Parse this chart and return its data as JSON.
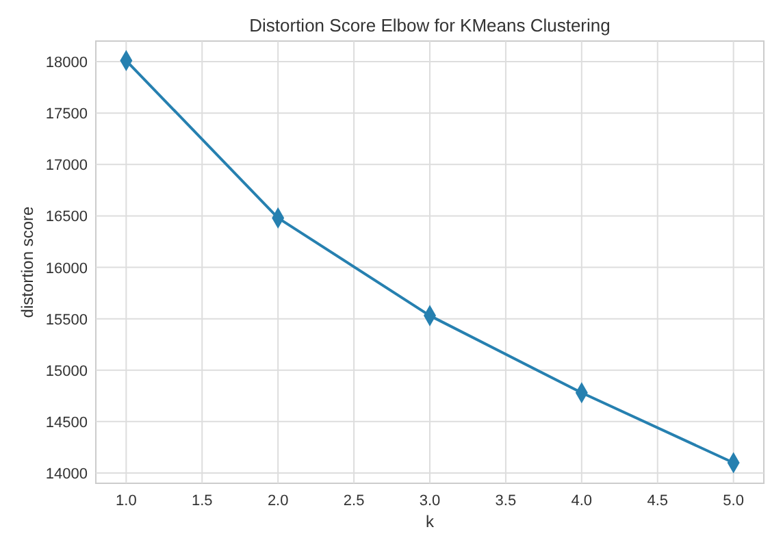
{
  "chart_data": {
    "type": "line",
    "title": "Distortion Score Elbow for KMeans Clustering",
    "xlabel": "k",
    "ylabel": "distortion score",
    "x": [
      1,
      2,
      3,
      4,
      5
    ],
    "series": [
      {
        "color": "#2680b0",
        "values": [
          18010,
          16480,
          15530,
          14780,
          14100
        ]
      }
    ],
    "xlim": [
      0.8,
      5.2
    ],
    "xticks": [
      {
        "value": 1,
        "label": "1.0"
      },
      {
        "value": 1.5,
        "label": "1.5"
      },
      {
        "value": 2,
        "label": "2.0"
      },
      {
        "value": 2.5,
        "label": "2.5"
      },
      {
        "value": 3,
        "label": "3.0"
      },
      {
        "value": 3.5,
        "label": "3.5"
      },
      {
        "value": 4,
        "label": "4.0"
      },
      {
        "value": 4.5,
        "label": "4.5"
      },
      {
        "value": 5,
        "label": "5.0"
      }
    ],
    "ylim": [
      13900,
      18200
    ],
    "yticks": [
      14000,
      14500,
      15000,
      15500,
      16000,
      16500,
      17000,
      17500,
      18000
    ],
    "grid": true,
    "marker": "diamond",
    "line_style": "solid"
  }
}
